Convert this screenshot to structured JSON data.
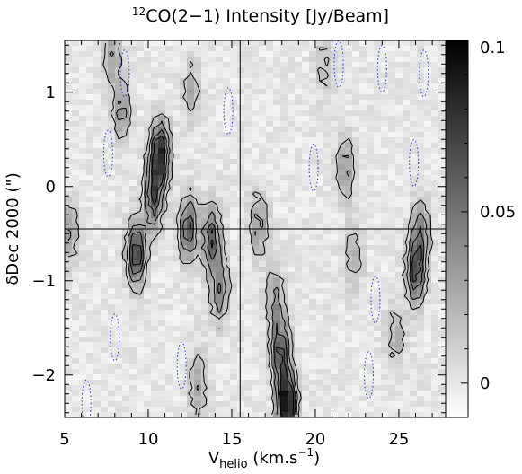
{
  "chart_data": {
    "type": "heatmap",
    "title_sup": "12",
    "title": "CO(2−1) Intensity [Jy/Beam]",
    "xlabel": {
      "main": "V",
      "sub": "helio",
      "rest": " (km.s",
      "sup": "−1",
      "end": ")"
    },
    "ylabel": "δDec 2000 (\")",
    "xlim": [
      5,
      27.8
    ],
    "ylim": [
      -2.45,
      1.55
    ],
    "xticks": [
      {
        "value": 5,
        "label": "5"
      },
      {
        "value": 10,
        "label": "10"
      },
      {
        "value": 15,
        "label": "15"
      },
      {
        "value": 20,
        "label": "20"
      },
      {
        "value": 25,
        "label": "25"
      }
    ],
    "yticks": [
      {
        "value": 1,
        "label": "1"
      },
      {
        "value": 0,
        "label": "0"
      },
      {
        "value": -1,
        "label": "−1"
      },
      {
        "value": -2,
        "label": "−2"
      }
    ],
    "colorbar": {
      "range": [
        -0.01,
        0.1
      ],
      "ticks": [
        {
          "value": 0.1,
          "label": "0.1"
        },
        {
          "value": 0.05,
          "label": "0.05"
        },
        {
          "value": 0,
          "label": "0"
        }
      ],
      "colormap": "white-to-black"
    },
    "reference_lines": {
      "x": 15.5,
      "y": -0.45
    },
    "emission_components": [
      {
        "vel": 10.7,
        "dec": 0.35,
        "peak": 0.085
      },
      {
        "vel": 10.3,
        "dec": -0.1,
        "peak": 0.06
      },
      {
        "vel": 9.3,
        "dec": -0.7,
        "peak": 0.075
      },
      {
        "vel": 12.4,
        "dec": -0.45,
        "peak": 0.06
      },
      {
        "vel": 13.8,
        "dec": -0.55,
        "peak": 0.058
      },
      {
        "vel": 14.3,
        "dec": -1.1,
        "peak": 0.045
      },
      {
        "vel": 8.4,
        "dec": 0.8,
        "peak": 0.035
      },
      {
        "vel": 7.8,
        "dec": 1.4,
        "peak": 0.03
      },
      {
        "vel": 18.3,
        "dec": -2.3,
        "peak": 0.1
      },
      {
        "vel": 17.9,
        "dec": -1.75,
        "peak": 0.06
      },
      {
        "vel": 17.6,
        "dec": -1.2,
        "peak": 0.035
      },
      {
        "vel": 26.0,
        "dec": -0.9,
        "peak": 0.065
      },
      {
        "vel": 26.3,
        "dec": -0.5,
        "peak": 0.04
      },
      {
        "vel": 21.8,
        "dec": 0.2,
        "peak": 0.035
      },
      {
        "vel": 22.3,
        "dec": -0.75,
        "peak": 0.025
      },
      {
        "vel": 16.6,
        "dec": -0.4,
        "peak": 0.035
      },
      {
        "vel": 5.3,
        "dec": -0.5,
        "peak": 0.03
      },
      {
        "vel": 12.6,
        "dec": 1.0,
        "peak": 0.025
      },
      {
        "vel": 13.0,
        "dec": -2.1,
        "peak": 0.03
      },
      {
        "vel": 24.8,
        "dec": -1.6,
        "peak": 0.025
      },
      {
        "vel": 20.5,
        "dec": 1.3,
        "peak": 0.018
      }
    ],
    "contour_levels": [
      0.015,
      0.03,
      0.045,
      0.06
    ],
    "negative_contour_level": -0.015,
    "negative_regions": [
      {
        "vel": 7.6,
        "dec": 0.35
      },
      {
        "vel": 8.6,
        "dec": 1.2
      },
      {
        "vel": 14.8,
        "dec": 0.8
      },
      {
        "vel": 19.9,
        "dec": 0.2
      },
      {
        "vel": 21.4,
        "dec": 1.3
      },
      {
        "vel": 24.0,
        "dec": 1.25
      },
      {
        "vel": 25.9,
        "dec": 0.25
      },
      {
        "vel": 23.6,
        "dec": -1.2
      },
      {
        "vel": 8.0,
        "dec": -1.6
      },
      {
        "vel": 12.0,
        "dec": -1.9
      },
      {
        "vel": 6.3,
        "dec": -2.3
      },
      {
        "vel": 26.5,
        "dec": 1.2
      },
      {
        "vel": 23.2,
        "dec": -2.0
      }
    ],
    "grid": false
  }
}
